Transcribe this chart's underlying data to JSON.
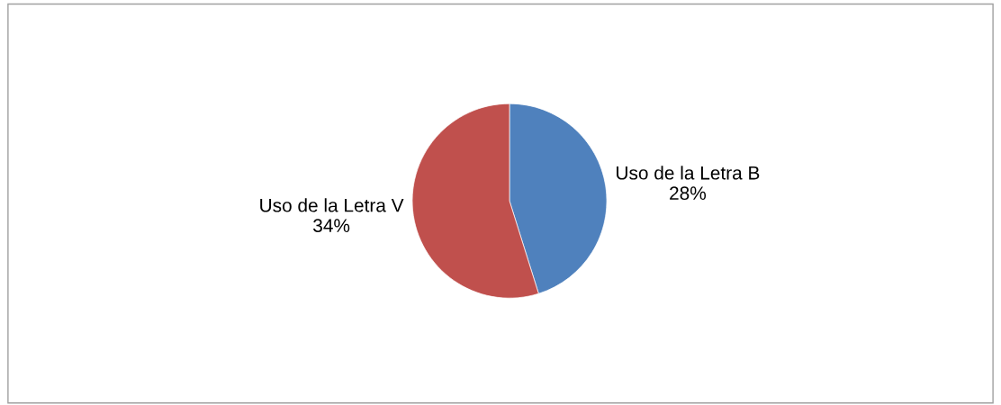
{
  "chart_data": {
    "type": "pie",
    "categories": [
      "Uso de la Letra B",
      "Uso de la Letra V"
    ],
    "values": [
      28,
      34
    ],
    "value_labels": [
      "28%",
      "34%"
    ],
    "colors": [
      "#4f81bd",
      "#c0504d"
    ]
  }
}
